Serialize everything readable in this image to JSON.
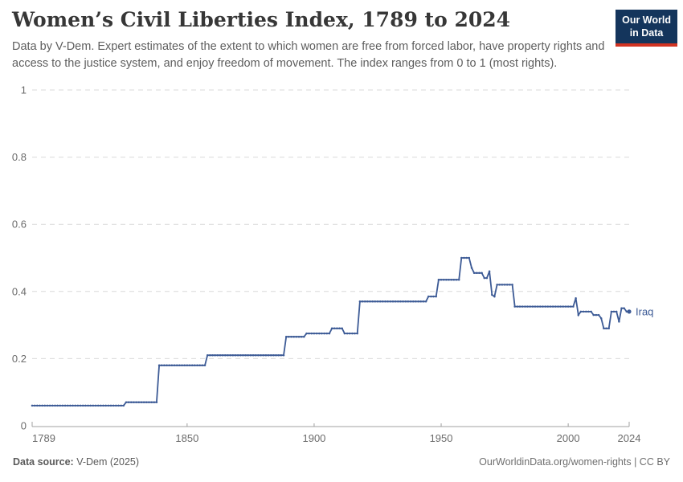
{
  "header": {
    "title": "Women’s Civil Liberties Index, 1789 to 2024",
    "subtitle": "Data by V-Dem. Expert estimates of the extent to which women are free from forced labor, have property rights and access to the justice system, and enjoy freedom of movement. The index ranges from 0 to 1 (most rights).",
    "logo": {
      "line1": "Our World",
      "line2": "in Data",
      "bg_color": "#14355c",
      "accent_color": "#d13322"
    }
  },
  "footer": {
    "source_label": "Data source:",
    "source_value": " V-Dem (2025)",
    "right_text": "OurWorldinData.org/women-rights | CC BY"
  },
  "chart_data": {
    "type": "line",
    "title": "Women's Civil Liberties Index, 1789 to 2024",
    "xlabel": "",
    "ylabel": "",
    "x_range": [
      1789,
      2024
    ],
    "y_range": [
      0,
      1
    ],
    "x_ticks": [
      1789,
      1850,
      1900,
      1950,
      2000,
      2024
    ],
    "y_ticks": [
      0,
      0.2,
      0.4,
      0.6,
      0.8,
      1
    ],
    "grid": "horizontal-dashed",
    "legend_position": "end-of-line-label",
    "line_color": "#3d5b96",
    "gridline_color": "#d9d9d9",
    "axis_color": "#a0a0a0",
    "tick_label_color": "#6b6b6b",
    "note": "step_breakpoints: [year, value] pairs; each value holds from that year until the next breakpoint (annual step series ending 2024).",
    "series": [
      {
        "name": "Iraq",
        "step_breakpoints": [
          [
            1789,
            0.06
          ],
          [
            1826,
            0.07
          ],
          [
            1839,
            0.18
          ],
          [
            1858,
            0.21
          ],
          [
            1889,
            0.265
          ],
          [
            1897,
            0.275
          ],
          [
            1907,
            0.29
          ],
          [
            1912,
            0.275
          ],
          [
            1918,
            0.37
          ],
          [
            1945,
            0.385
          ],
          [
            1949,
            0.435
          ],
          [
            1958,
            0.5
          ],
          [
            1962,
            0.47
          ],
          [
            1963,
            0.455
          ],
          [
            1967,
            0.44
          ],
          [
            1969,
            0.46
          ],
          [
            1970,
            0.39
          ],
          [
            1971,
            0.385
          ],
          [
            1972,
            0.42
          ],
          [
            1979,
            0.355
          ],
          [
            2003,
            0.38
          ],
          [
            2004,
            0.33
          ],
          [
            2005,
            0.34
          ],
          [
            2010,
            0.33
          ],
          [
            2013,
            0.32
          ],
          [
            2014,
            0.29
          ],
          [
            2017,
            0.34
          ],
          [
            2020,
            0.31
          ],
          [
            2021,
            0.35
          ],
          [
            2023,
            0.34
          ]
        ]
      }
    ]
  }
}
